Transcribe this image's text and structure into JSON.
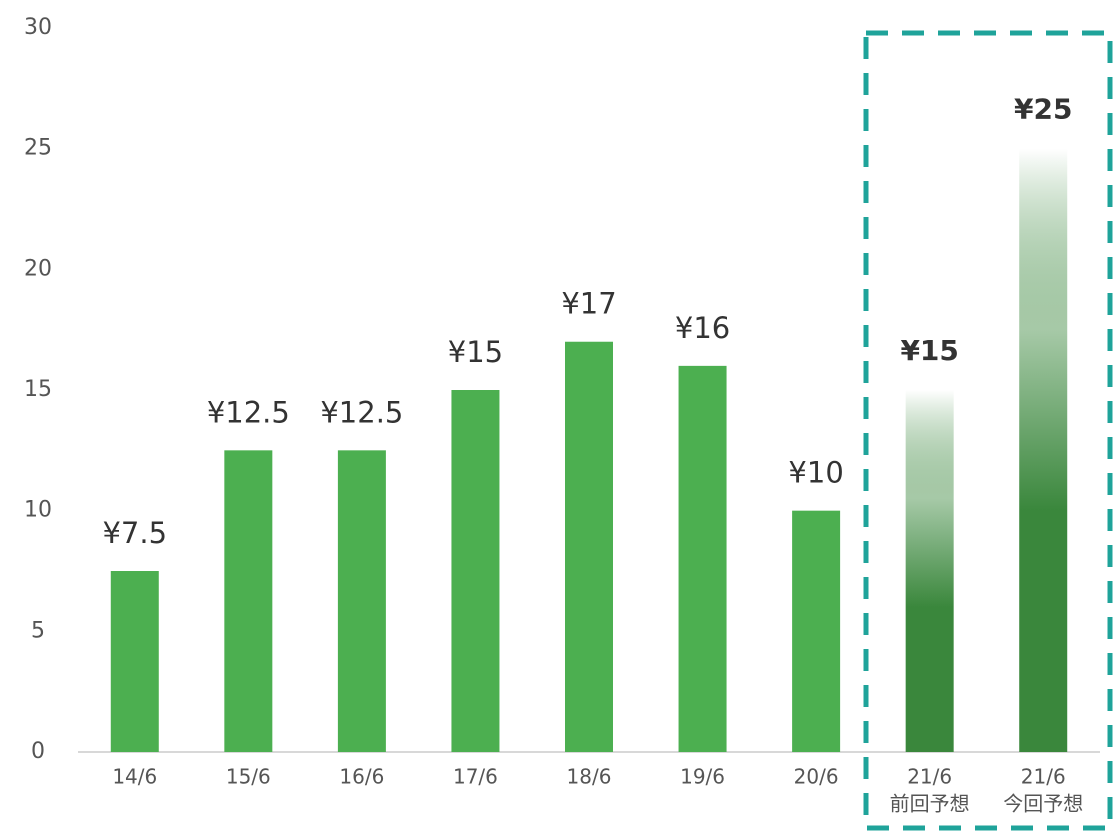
{
  "chart_data": {
    "type": "bar",
    "categories": [
      "14/6",
      "15/6",
      "16/6",
      "17/6",
      "18/6",
      "19/6",
      "20/6",
      "21/6",
      "21/6"
    ],
    "sublabels": [
      null,
      null,
      null,
      null,
      null,
      null,
      null,
      "前回予想",
      "今回予想"
    ],
    "values": [
      7.5,
      12.5,
      12.5,
      15,
      17,
      16,
      10,
      15,
      25
    ],
    "value_labels": [
      "¥7.5",
      "¥12.5",
      "¥12.5",
      "¥15",
      "¥17",
      "¥16",
      "¥10",
      "¥15",
      "¥25"
    ],
    "colors": [
      "#4caf50",
      "#4caf50",
      "#4caf50",
      "#4caf50",
      "#4caf50",
      "#4caf50",
      "#4caf50",
      "#3a873c",
      "#3a873c"
    ],
    "gradient": [
      false,
      false,
      false,
      false,
      false,
      false,
      false,
      true,
      true
    ],
    "ylim": [
      0,
      30
    ],
    "yticks": [
      0,
      5,
      10,
      15,
      20,
      25,
      30
    ],
    "grid": false
  }
}
